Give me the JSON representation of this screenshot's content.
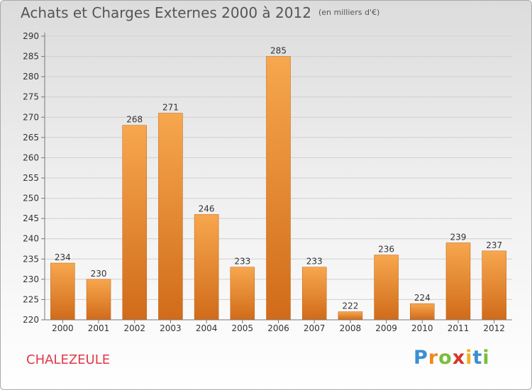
{
  "title": "Achats et Charges Externes 2000 à 2012",
  "subtitle": "(en milliers d'€)",
  "commune": "CHALEZEULE",
  "logo": {
    "text": "Proxiti",
    "letters": [
      "P",
      "r",
      "o",
      "x",
      "i",
      "t",
      "i"
    ],
    "colors": [
      "#3a8fd4",
      "#ee8a20",
      "#7cbd3b",
      "#d8342c",
      "#f0b020",
      "#3a8fd4",
      "#7cbd3b"
    ]
  },
  "colors": {
    "bar_top": "#f7a74e",
    "bar_bottom": "#d06b1a",
    "axis": "#777777",
    "grid": "#d0d0d0",
    "label": "#333333",
    "commune": "#e0384a"
  },
  "chart_data": {
    "type": "bar",
    "categories": [
      "2000",
      "2001",
      "2002",
      "2003",
      "2004",
      "2005",
      "2006",
      "2007",
      "2008",
      "2009",
      "2010",
      "2011",
      "2012"
    ],
    "values": [
      234,
      230,
      268,
      271,
      246,
      233,
      285,
      233,
      222,
      236,
      224,
      239,
      237
    ],
    "ylim": [
      220,
      290
    ],
    "yticks": [
      220,
      225,
      230,
      235,
      240,
      245,
      250,
      255,
      260,
      265,
      270,
      275,
      280,
      285,
      290
    ],
    "title": "Achats et Charges Externes 2000 à 2012",
    "xlabel": "",
    "ylabel": "",
    "grid": true,
    "data_labels": true
  }
}
